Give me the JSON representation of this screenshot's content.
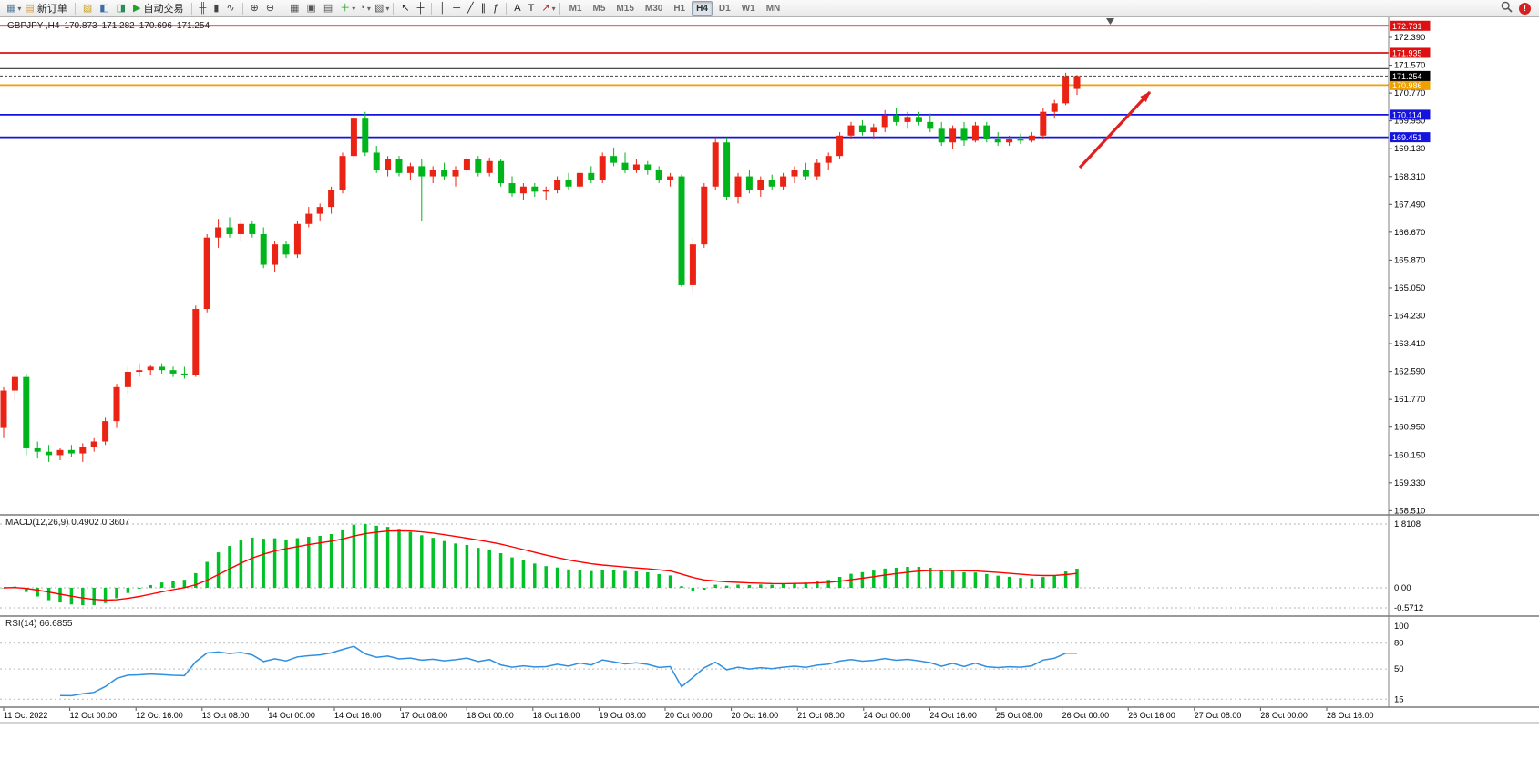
{
  "toolbar": {
    "active_timeframe": "H4",
    "items": [
      {
        "kind": "icon",
        "name": "new-chart-icon",
        "glyph": "▦",
        "color": "#5a7d9a"
      },
      {
        "kind": "dropdown",
        "name": "new-chart-dropdown"
      },
      {
        "kind": "button",
        "name": "new-order-button",
        "icon": "new-order-icon",
        "glyph": "▤",
        "color": "#d29a38",
        "label": "新订单"
      },
      {
        "kind": "sep"
      },
      {
        "kind": "icon",
        "name": "profiles-icon",
        "glyph": "▨",
        "color": "#c8a020"
      },
      {
        "kind": "icon",
        "name": "market-watch-icon",
        "glyph": "◧",
        "color": "#3a6ea5"
      },
      {
        "kind": "icon",
        "name": "navigator-icon",
        "glyph": "◨",
        "color": "#2e8b57"
      },
      {
        "kind": "button",
        "name": "auto-trading-button",
        "icon": "auto-trading-icon",
        "glyph": "▶",
        "color": "#27a127",
        "label": "自动交易"
      },
      {
        "kind": "sep"
      },
      {
        "kind": "icon",
        "name": "bar-chart-icon",
        "glyph": "╫",
        "color": "#444444"
      },
      {
        "kind": "icon",
        "name": "candlestick-chart-icon",
        "glyph": "▮",
        "color": "#444444"
      },
      {
        "kind": "icon",
        "name": "line-chart-icon",
        "glyph": "∿",
        "color": "#444444"
      },
      {
        "kind": "sep"
      },
      {
        "kind": "icon",
        "name": "zoom-in-icon",
        "glyph": "⊕",
        "color": "#444444"
      },
      {
        "kind": "icon",
        "name": "zoom-out-icon",
        "glyph": "⊖",
        "color": "#444444"
      },
      {
        "kind": "sep"
      },
      {
        "kind": "icon",
        "name": "tile-windows-icon",
        "glyph": "▦",
        "color": "#555555"
      },
      {
        "kind": "icon",
        "name": "auto-arrange-icon",
        "glyph": "▣",
        "color": "#555555"
      },
      {
        "kind": "icon",
        "name": "grid-icon",
        "glyph": "▤",
        "color": "#555555"
      },
      {
        "kind": "icon",
        "name": "indicators-icon",
        "glyph": "＋",
        "color": "#27a127"
      },
      {
        "kind": "dropdown",
        "name": "indicators-dropdown"
      },
      {
        "kind": "icon",
        "name": "period-icon",
        "glyph": "◔",
        "color": "#555555"
      },
      {
        "kind": "dropdown",
        "name": "period-dropdown"
      },
      {
        "kind": "icon",
        "name": "templates-icon",
        "glyph": "▧",
        "color": "#555555"
      },
      {
        "kind": "dropdown",
        "name": "templates-dropdown"
      },
      {
        "kind": "sep"
      },
      {
        "kind": "icon",
        "name": "cursor-icon",
        "glyph": "↖",
        "color": "#222222"
      },
      {
        "kind": "icon",
        "name": "crosshair-icon",
        "glyph": "┼",
        "color": "#222222"
      },
      {
        "kind": "sep"
      },
      {
        "kind": "icon",
        "name": "vertical-line-icon",
        "glyph": "│",
        "color": "#222222"
      },
      {
        "kind": "icon",
        "name": "horizontal-line-icon",
        "glyph": "─",
        "color": "#222222"
      },
      {
        "kind": "icon",
        "name": "trendline-icon",
        "glyph": "╱",
        "color": "#222222"
      },
      {
        "kind": "icon",
        "name": "channel-icon",
        "glyph": "∥",
        "color": "#222222"
      },
      {
        "kind": "icon",
        "name": "fibonacci-icon",
        "glyph": "ƒ",
        "color": "#222222"
      },
      {
        "kind": "sep"
      },
      {
        "kind": "icon",
        "name": "text-icon",
        "glyph": "A",
        "color": "#222222"
      },
      {
        "kind": "icon",
        "name": "text-label-icon",
        "glyph": "T",
        "color": "#222222"
      },
      {
        "kind": "icon",
        "name": "arrows-icon",
        "glyph": "↗",
        "color": "#bb2020"
      },
      {
        "kind": "dropdown",
        "name": "arrows-dropdown"
      },
      {
        "kind": "sep"
      },
      {
        "kind": "tf",
        "label": "M1"
      },
      {
        "kind": "tf",
        "label": "M5"
      },
      {
        "kind": "tf",
        "label": "M15"
      },
      {
        "kind": "tf",
        "label": "M30"
      },
      {
        "kind": "tf",
        "label": "H1"
      },
      {
        "kind": "tf",
        "label": "H4"
      },
      {
        "kind": "tf",
        "label": "D1"
      },
      {
        "kind": "tf",
        "label": "W1"
      },
      {
        "kind": "tf",
        "label": "MN"
      }
    ],
    "alert_badge": "!"
  },
  "chart_data": {
    "type": "candlestick",
    "header": {
      "symbol_period": "GBPJPY-,H4",
      "open": "170.873",
      "high": "171.282",
      "low": "170.696",
      "close": "171.254"
    },
    "y_axis": {
      "top": 172.39,
      "step": 0.82
    },
    "y_axis_labels": [
      "172.390",
      "171.570",
      "170.770",
      "169.950",
      "169.130",
      "168.310",
      "167.490",
      "166.670",
      "165.870",
      "165.050",
      "164.230",
      "163.410",
      "162.590",
      "161.770",
      "160.950",
      "160.150",
      "159.330",
      "158.510"
    ],
    "time_labels": [
      "11 Oct 2022",
      "12 Oct 00:00",
      "12 Oct 16:00",
      "13 Oct 08:00",
      "14 Oct 00:00",
      "14 Oct 16:00",
      "17 Oct 08:00",
      "18 Oct 00:00",
      "18 Oct 16:00",
      "19 Oct 08:00",
      "20 Oct 00:00",
      "20 Oct 16:00",
      "21 Oct 08:00",
      "24 Oct 00:00",
      "24 Oct 16:00",
      "25 Oct 08:00",
      "26 Oct 00:00",
      "26 Oct 16:00",
      "27 Oct 08:00",
      "28 Oct 00:00",
      "28 Oct 16:00"
    ],
    "colors": {
      "up": "#ea2314",
      "down": "#00b51c",
      "macd_bar": "#00c227",
      "macd_signal": "#ff0000",
      "rsi_line": "#2f8fe0",
      "arrow": "#e01f1f",
      "red_level": "#dd1111",
      "orange_level": "#f0a000",
      "blue_level": "#1414dd"
    },
    "h_lines": [
      {
        "price": 172.731,
        "label": "172.731",
        "color": "#dd1111"
      },
      {
        "price": 171.935,
        "label": "171.935",
        "color": "#dd1111"
      },
      {
        "price": 171.47,
        "label": "",
        "color": "#333333"
      },
      {
        "price": 170.986,
        "label": "170.986",
        "color": "#f0a000"
      },
      {
        "price": 170.114,
        "label": "170.114",
        "color": "#1414dd"
      },
      {
        "price": 169.451,
        "label": "169.451",
        "color": "#1414dd"
      }
    ],
    "bid_line": {
      "price": 171.254,
      "label": "171.254",
      "color": "#000000"
    },
    "indicators": {
      "macd": {
        "label": "MACD(12,26,9) 0.4902 0.3607",
        "fast": 12,
        "slow": 26,
        "signal": 9,
        "axis_labels": [
          "1.8108",
          "0.00",
          "-0.5712"
        ]
      },
      "rsi": {
        "label": "RSI(14) 66.6855",
        "period": 14,
        "levels": [
          80,
          50,
          15
        ],
        "axis_labels": [
          "100",
          "80",
          "50",
          "15"
        ]
      }
    },
    "candles": [
      [
        160.9,
        162.1,
        160.6,
        162.0
      ],
      [
        162.0,
        162.5,
        161.7,
        162.4
      ],
      [
        162.4,
        162.5,
        160.1,
        160.3
      ],
      [
        160.3,
        160.5,
        160.0,
        160.2
      ],
      [
        160.2,
        160.4,
        159.9,
        160.1
      ],
      [
        160.1,
        160.3,
        159.95,
        160.25
      ],
      [
        160.25,
        160.4,
        160.05,
        160.15
      ],
      [
        160.15,
        160.45,
        159.9,
        160.35
      ],
      [
        160.35,
        160.6,
        160.2,
        160.5
      ],
      [
        160.5,
        161.2,
        160.4,
        161.1
      ],
      [
        161.1,
        162.2,
        160.9,
        162.1
      ],
      [
        162.1,
        162.7,
        161.9,
        162.55
      ],
      [
        162.55,
        162.8,
        162.4,
        162.6
      ],
      [
        162.6,
        162.75,
        162.45,
        162.7
      ],
      [
        162.7,
        162.8,
        162.5,
        162.6
      ],
      [
        162.6,
        162.7,
        162.4,
        162.5
      ],
      [
        162.5,
        162.7,
        162.35,
        162.45
      ],
      [
        162.45,
        164.5,
        162.4,
        164.4
      ],
      [
        164.4,
        166.6,
        164.3,
        166.5
      ],
      [
        166.5,
        167.05,
        166.2,
        166.8
      ],
      [
        166.8,
        167.1,
        166.5,
        166.6
      ],
      [
        166.6,
        167.05,
        166.4,
        166.9
      ],
      [
        166.9,
        167.0,
        166.5,
        166.6
      ],
      [
        166.6,
        166.8,
        165.6,
        165.7
      ],
      [
        165.7,
        166.4,
        165.5,
        166.3
      ],
      [
        166.3,
        166.4,
        165.9,
        166.0
      ],
      [
        166.0,
        167.0,
        165.9,
        166.9
      ],
      [
        166.9,
        167.4,
        166.8,
        167.2
      ],
      [
        167.2,
        167.5,
        167.0,
        167.4
      ],
      [
        167.4,
        168.0,
        167.2,
        167.9
      ],
      [
        167.9,
        169.0,
        167.8,
        168.9
      ],
      [
        168.9,
        170.15,
        168.8,
        170.0
      ],
      [
        170.0,
        170.2,
        168.9,
        169.0
      ],
      [
        169.0,
        169.2,
        168.4,
        168.5
      ],
      [
        168.5,
        168.9,
        168.3,
        168.8
      ],
      [
        168.8,
        168.9,
        168.3,
        168.4
      ],
      [
        168.4,
        168.7,
        168.2,
        168.6
      ],
      [
        168.6,
        168.8,
        167.0,
        168.3
      ],
      [
        168.3,
        168.6,
        168.1,
        168.5
      ],
      [
        168.5,
        168.7,
        168.2,
        168.3
      ],
      [
        168.3,
        168.6,
        168.0,
        168.5
      ],
      [
        168.5,
        168.9,
        168.4,
        168.8
      ],
      [
        168.8,
        168.9,
        168.3,
        168.4
      ],
      [
        168.4,
        168.85,
        168.3,
        168.75
      ],
      [
        168.75,
        168.8,
        168.0,
        168.1
      ],
      [
        168.1,
        168.3,
        167.7,
        167.8
      ],
      [
        167.8,
        168.1,
        167.6,
        168.0
      ],
      [
        168.0,
        168.1,
        167.7,
        167.85
      ],
      [
        167.85,
        168.0,
        167.6,
        167.9
      ],
      [
        167.9,
        168.3,
        167.8,
        168.2
      ],
      [
        168.2,
        168.4,
        167.9,
        168.0
      ],
      [
        168.0,
        168.5,
        167.9,
        168.4
      ],
      [
        168.4,
        168.6,
        168.1,
        168.2
      ],
      [
        168.2,
        169.0,
        168.1,
        168.9
      ],
      [
        168.9,
        169.15,
        168.6,
        168.7
      ],
      [
        168.7,
        169.0,
        168.4,
        168.5
      ],
      [
        168.5,
        168.8,
        168.4,
        168.65
      ],
      [
        168.65,
        168.75,
        168.35,
        168.5
      ],
      [
        168.5,
        168.6,
        168.1,
        168.2
      ],
      [
        168.2,
        168.4,
        168.0,
        168.3
      ],
      [
        168.3,
        168.35,
        165.05,
        165.1
      ],
      [
        165.1,
        166.5,
        164.9,
        166.3
      ],
      [
        166.3,
        168.1,
        166.2,
        168.0
      ],
      [
        168.0,
        169.45,
        167.9,
        169.3
      ],
      [
        169.3,
        169.45,
        167.6,
        167.7
      ],
      [
        167.7,
        168.4,
        167.5,
        168.3
      ],
      [
        168.3,
        168.5,
        167.8,
        167.9
      ],
      [
        167.9,
        168.3,
        167.7,
        168.2
      ],
      [
        168.2,
        168.35,
        167.9,
        168.0
      ],
      [
        168.0,
        168.4,
        167.9,
        168.3
      ],
      [
        168.3,
        168.6,
        168.1,
        168.5
      ],
      [
        168.5,
        168.7,
        168.2,
        168.3
      ],
      [
        168.3,
        168.8,
        168.2,
        168.7
      ],
      [
        168.7,
        169.0,
        168.5,
        168.9
      ],
      [
        168.9,
        169.6,
        168.8,
        169.5
      ],
      [
        169.5,
        169.9,
        169.4,
        169.8
      ],
      [
        169.8,
        169.95,
        169.5,
        169.6
      ],
      [
        169.6,
        169.85,
        169.4,
        169.75
      ],
      [
        169.75,
        170.25,
        169.6,
        170.1
      ],
      [
        170.1,
        170.3,
        169.8,
        169.9
      ],
      [
        169.9,
        170.2,
        169.7,
        170.05
      ],
      [
        170.05,
        170.2,
        169.8,
        169.9
      ],
      [
        169.9,
        170.15,
        169.6,
        169.7
      ],
      [
        169.7,
        169.9,
        169.2,
        169.3
      ],
      [
        169.3,
        169.8,
        169.1,
        169.7
      ],
      [
        169.7,
        169.9,
        169.2,
        169.35
      ],
      [
        169.35,
        169.9,
        169.3,
        169.8
      ],
      [
        169.8,
        169.9,
        169.3,
        169.4
      ],
      [
        169.4,
        169.6,
        169.2,
        169.3
      ],
      [
        169.3,
        169.5,
        169.2,
        169.4
      ],
      [
        169.4,
        169.55,
        169.25,
        169.35
      ],
      [
        169.35,
        169.6,
        169.3,
        169.5
      ],
      [
        169.5,
        170.3,
        169.4,
        170.2
      ],
      [
        170.2,
        170.55,
        170.0,
        170.45
      ],
      [
        170.45,
        171.35,
        170.4,
        171.25
      ],
      [
        170.873,
        171.282,
        170.696,
        171.254
      ]
    ]
  }
}
